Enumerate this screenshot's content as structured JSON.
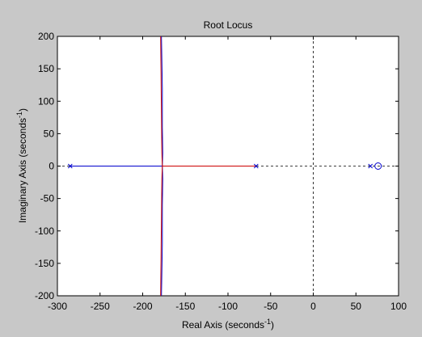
{
  "chart_data": {
    "type": "line",
    "title": "Root Locus",
    "xlabel": "Real Axis (seconds",
    "ylabel": "Imaginary Axis (seconds",
    "axis_unit_exponent": "-1",
    "xlim": [
      -300,
      100
    ],
    "ylim": [
      -200,
      200
    ],
    "xticks": [
      -300,
      -250,
      -200,
      -150,
      -100,
      -50,
      0,
      50,
      100
    ],
    "yticks": [
      -200,
      -150,
      -100,
      -50,
      0,
      50,
      100,
      150,
      200
    ],
    "grid": false,
    "reference_lines": {
      "x0": true,
      "y0": true,
      "style": "dashed"
    },
    "poles_x": [
      -285,
      -67,
      67
    ],
    "zeros_x": [
      76
    ],
    "series": [
      {
        "color": "#0000cc",
        "points": [
          [
            -285,
            0
          ],
          [
            -177,
            0
          ],
          [
            -176.5,
            -20
          ],
          [
            -177,
            -60
          ],
          [
            -177,
            -120
          ],
          [
            -178,
            -200
          ]
        ]
      },
      {
        "color": "#0000cc",
        "points": [
          [
            -177,
            0
          ],
          [
            -176.5,
            20
          ],
          [
            -177,
            60
          ],
          [
            -177,
            120
          ],
          [
            -178,
            200
          ]
        ]
      },
      {
        "color": "#cc0000",
        "points": [
          [
            -67,
            0
          ],
          [
            -177,
            0
          ],
          [
            -177.5,
            -20
          ],
          [
            -178,
            -80
          ],
          [
            -179,
            -200
          ]
        ]
      },
      {
        "color": "#cc0000",
        "points": [
          [
            -177,
            0
          ],
          [
            -177.5,
            20
          ],
          [
            -178,
            80
          ],
          [
            -179,
            200
          ]
        ]
      }
    ]
  }
}
